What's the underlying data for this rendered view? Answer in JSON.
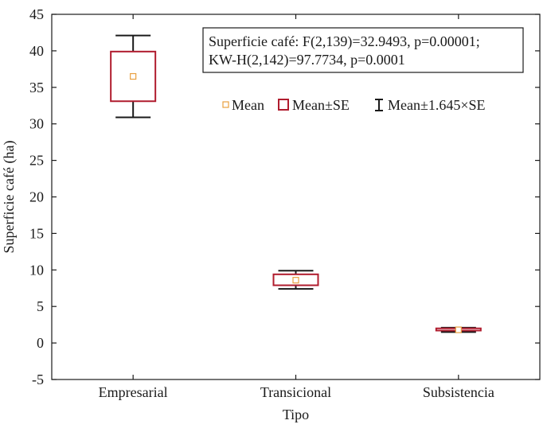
{
  "chart_data": {
    "type": "box",
    "title": "",
    "xlabel": "Tipo",
    "ylabel": "Superficie café (ha)",
    "ylim": [
      -5,
      45
    ],
    "yticks": [
      -5,
      0,
      5,
      10,
      15,
      20,
      25,
      30,
      35,
      40,
      45
    ],
    "categories": [
      "Empresarial",
      "Transicional",
      "Subsistencia"
    ],
    "mean": [
      36.5,
      8.6,
      1.8
    ],
    "mean_minus_se": [
      33.1,
      7.9,
      1.7
    ],
    "mean_plus_se": [
      39.9,
      9.4,
      2.0
    ],
    "mean_minus_1645se": [
      30.9,
      7.4,
      1.5
    ],
    "mean_plus_1645se": [
      42.1,
      9.9,
      2.1
    ],
    "stats_annotation": [
      "Superficie café: F(2,139)=32.9493, p=0.00001;",
      "KW-H(2,142)=97.7734, p=0.0001"
    ],
    "legend": {
      "position": "top-right",
      "entries": [
        {
          "label": "Mean",
          "symbol": "square-marker",
          "color": "#e8a040"
        },
        {
          "label": "Mean±SE",
          "symbol": "box",
          "color": "#b01c2e"
        },
        {
          "label": "Mean±1.645×SE",
          "symbol": "whisker",
          "color": "#1a1a1a"
        }
      ]
    },
    "colors": {
      "box": "#b01c2e",
      "whisker": "#1a1a1a",
      "mean_marker": "#e8a040",
      "axis": "#1a1a1a"
    },
    "grid": false
  }
}
